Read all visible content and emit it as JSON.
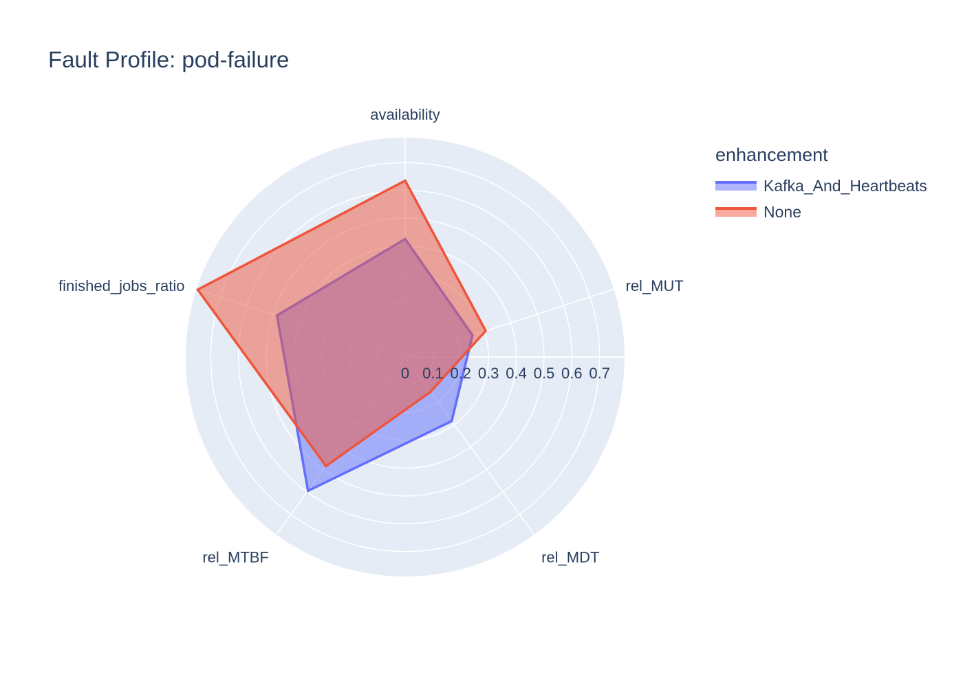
{
  "chart_data": {
    "type": "radar",
    "title": "Fault Profile: pod-failure",
    "axes": [
      "availability",
      "rel_MUT",
      "rel_MDT",
      "rel_MTBF",
      "finished_jobs_ratio"
    ],
    "radial_ticks": [
      "0",
      "0.1",
      "0.2",
      "0.3",
      "0.4",
      "0.5",
      "0.6",
      "0.7"
    ],
    "radial_range": [
      0,
      0.79
    ],
    "legend_title": "enhancement",
    "legend_position": "top-right",
    "grid": true,
    "series": [
      {
        "name": "Kafka_And_Heartbeats",
        "values": [
          0.425,
          0.255,
          0.285,
          0.595,
          0.485
        ],
        "color": "#636efa"
      },
      {
        "name": "None",
        "values": [
          0.635,
          0.305,
          0.155,
          0.485,
          0.785
        ],
        "color": "#ef553b"
      }
    ]
  }
}
